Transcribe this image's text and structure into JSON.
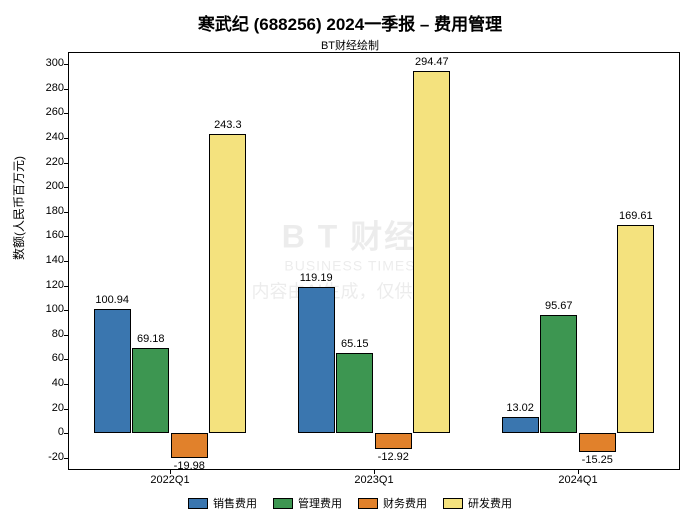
{
  "title": "寒武纪 (688256) 2024一季报  –  费用管理",
  "subtitle": "BT财经绘制",
  "ylabel": "数额(人民币百万元)",
  "chart": {
    "type": "bar",
    "background_color": "#ffffff",
    "grid_color": "#e0e0e0",
    "border_color": "#000000",
    "ylim": [
      -30,
      310
    ],
    "ytick_step": 20,
    "yticks": [
      -20,
      0,
      20,
      40,
      60,
      80,
      100,
      120,
      140,
      160,
      180,
      200,
      220,
      240,
      260,
      280,
      300
    ],
    "categories": [
      "2022Q1",
      "2023Q1",
      "2024Q1"
    ],
    "series": [
      {
        "name": "销售费用",
        "color": "#3a76af",
        "values": [
          100.94,
          119.19,
          13.02
        ]
      },
      {
        "name": "管理费用",
        "color": "#3d9651",
        "values": [
          69.18,
          65.15,
          95.67
        ]
      },
      {
        "name": "财务费用",
        "color": "#e1812b",
        "values": [
          -19.98,
          -12.92,
          -15.25
        ]
      },
      {
        "name": "研发费用",
        "color": "#f4e27e",
        "values": [
          243.3,
          294.47,
          169.61
        ]
      }
    ],
    "bar_width": 0.2,
    "label_fontsize": 11,
    "title_fontsize": 17,
    "axis_fontsize": 12
  },
  "legend": {
    "items": [
      "销售费用",
      "管理费用",
      "财务费用",
      "研发费用"
    ],
    "colors": [
      "#3a76af",
      "#3d9651",
      "#e1812b",
      "#f4e27e"
    ]
  },
  "watermark": {
    "main": "B T 财经",
    "sub": "BUSINESS TIMES",
    "cn": "内容由AI生成，仅供参考"
  }
}
